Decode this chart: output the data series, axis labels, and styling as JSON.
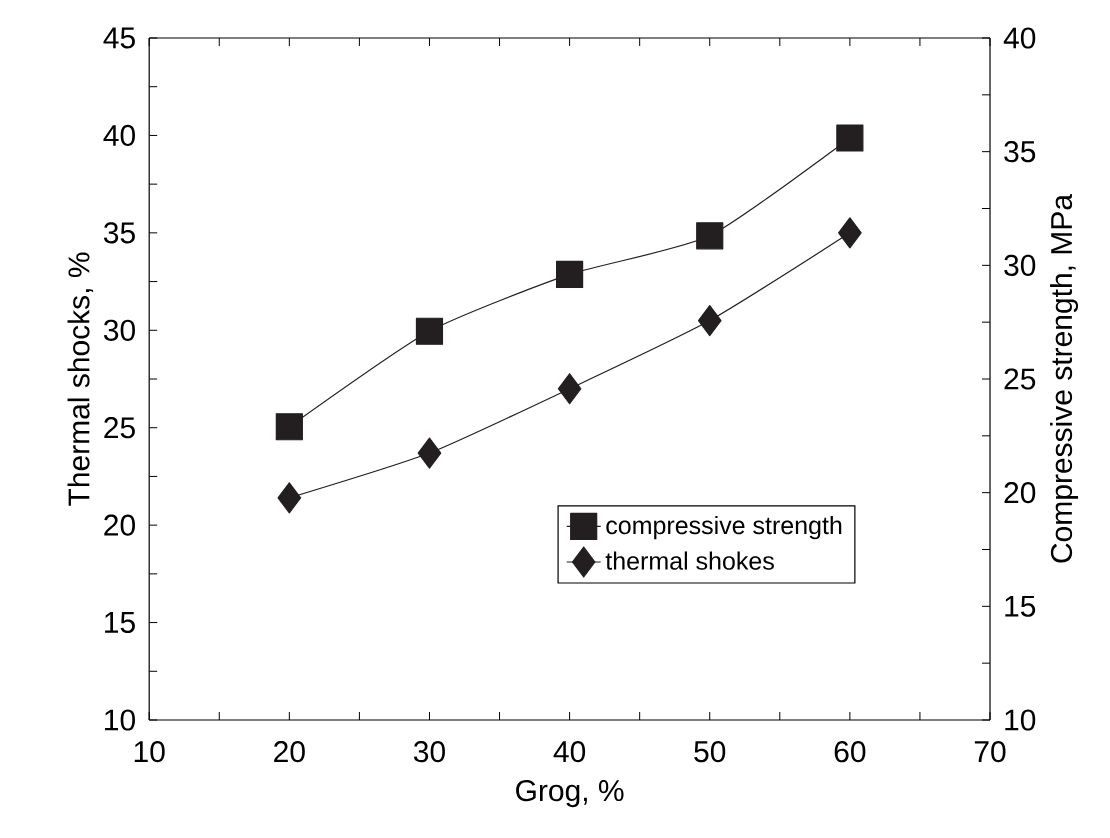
{
  "chart_data": {
    "type": "line",
    "xlabel": "Grog, %",
    "ylabel": "Thermal shocks, %",
    "y2label": "Compressive strength, MPa",
    "x": [
      20,
      30,
      40,
      50,
      60
    ],
    "series": [
      {
        "name": "compressive strength",
        "color": "#231f20",
        "axis": "y2",
        "marker": "square",
        "values": [
          22.9,
          27.1,
          29.6,
          31.3,
          35.6
        ]
      },
      {
        "name": "thermal shokes",
        "color": "#231f20",
        "marker": "diamond",
        "values": [
          21.4,
          23.7,
          27.0,
          30.5,
          35.0
        ]
      }
    ],
    "xlim": [
      10,
      70
    ],
    "xticks": [
      10,
      20,
      30,
      40,
      50,
      60,
      70
    ],
    "ylim": [
      10,
      45
    ],
    "yticks": [
      10,
      15,
      20,
      25,
      30,
      35,
      40,
      45
    ],
    "y2lim": [
      10,
      40
    ],
    "y2ticks": [
      10,
      15,
      20,
      25,
      30,
      35,
      40
    ],
    "legend": "bottom right"
  }
}
